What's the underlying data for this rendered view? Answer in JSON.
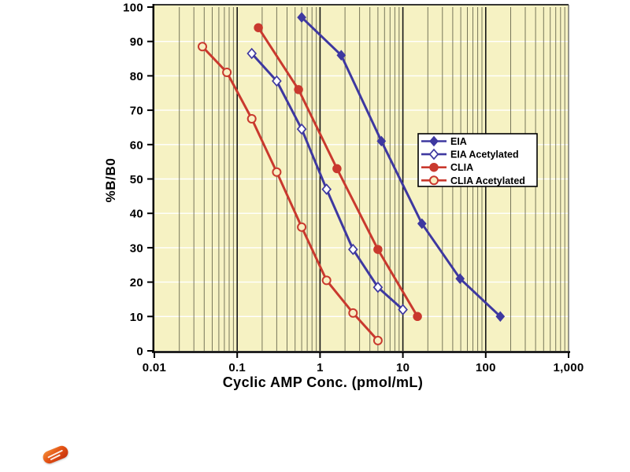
{
  "chart_data": {
    "type": "line",
    "title": "",
    "xlabel": "Cyclic AMP Conc. (pmol/mL)",
    "ylabel": "%B/B0",
    "x_scale": "log",
    "xlim": [
      0.01,
      1000
    ],
    "ylim": [
      0,
      100
    ],
    "x_ticks": [
      {
        "value": 0.01,
        "label": "0.01"
      },
      {
        "value": 0.1,
        "label": "0.1"
      },
      {
        "value": 1,
        "label": "1"
      },
      {
        "value": 10,
        "label": "10"
      },
      {
        "value": 100,
        "label": "100"
      },
      {
        "value": 1000,
        "label": "1,000"
      }
    ],
    "y_ticks": [
      0,
      10,
      20,
      30,
      40,
      50,
      60,
      70,
      80,
      90,
      100
    ],
    "grid": {
      "horizontal_step": 10,
      "x_minor_divisions": [
        2,
        3,
        4,
        5,
        6,
        7,
        8,
        9
      ]
    },
    "legend": {
      "position": "middle-right"
    },
    "series": [
      {
        "name": "EIA",
        "color": "#3e38a0",
        "marker": "diamond",
        "marker_fill": "filled",
        "points": [
          [
            0.6,
            97
          ],
          [
            1.8,
            86
          ],
          [
            5.5,
            61
          ],
          [
            17,
            37
          ],
          [
            49,
            21
          ],
          [
            150,
            10
          ]
        ]
      },
      {
        "name": "EIA Acetylated",
        "color": "#3e38a0",
        "marker": "diamond",
        "marker_fill": "open",
        "points": [
          [
            0.15,
            86.5
          ],
          [
            0.3,
            78.5
          ],
          [
            0.6,
            64.5
          ],
          [
            1.2,
            47
          ],
          [
            2.5,
            29.5
          ],
          [
            5,
            18.5
          ],
          [
            10,
            12
          ]
        ]
      },
      {
        "name": "CLIA",
        "color": "#c9392e",
        "marker": "circle",
        "marker_fill": "filled",
        "points": [
          [
            0.18,
            94
          ],
          [
            0.55,
            76
          ],
          [
            1.6,
            53
          ],
          [
            5,
            29.5
          ],
          [
            15,
            10
          ]
        ]
      },
      {
        "name": "CLIA Acetylated",
        "color": "#c9392e",
        "marker": "circle",
        "marker_fill": "open",
        "points": [
          [
            0.038,
            88.5
          ],
          [
            0.075,
            81
          ],
          [
            0.15,
            67.5
          ],
          [
            0.3,
            52
          ],
          [
            0.6,
            36
          ],
          [
            1.2,
            20.5
          ],
          [
            2.5,
            11
          ],
          [
            5,
            3
          ]
        ]
      }
    ]
  },
  "styles": {
    "page_bg": "#ffffff",
    "plot_bg": "#f6f2c3",
    "h_grid_color": "#ffffff",
    "v_minor_grid_color": "#4d4d38",
    "v_major_grid_color": "#161616",
    "axis_color": "#000000",
    "plot_top_border": "#1a1a1a",
    "plot_right_border": "#555555",
    "open_diamond_fill": "#ffffff",
    "open_circle_fill": "#f8efc3",
    "legend_bg": "#ffffff",
    "legend_border": "#000000"
  },
  "logo": {
    "label": "brand-logo"
  }
}
